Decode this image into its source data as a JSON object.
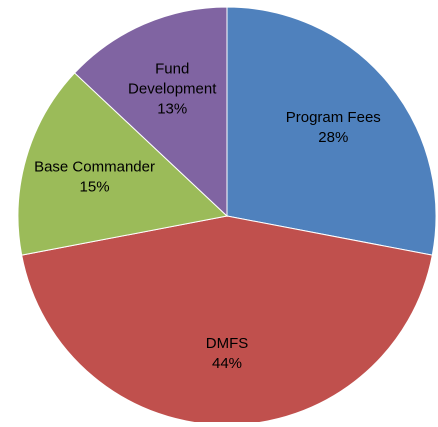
{
  "chart_data": {
    "type": "pie",
    "categories": [
      "Program Fees",
      "DMFS",
      "Base Commander",
      "Fund Development"
    ],
    "values": [
      28,
      44,
      15,
      13
    ],
    "value_labels": [
      "28%",
      "44%",
      "15%",
      "13%"
    ],
    "colors": [
      "#4f81bd",
      "#c0504d",
      "#9bbb59",
      "#8064a2"
    ]
  }
}
